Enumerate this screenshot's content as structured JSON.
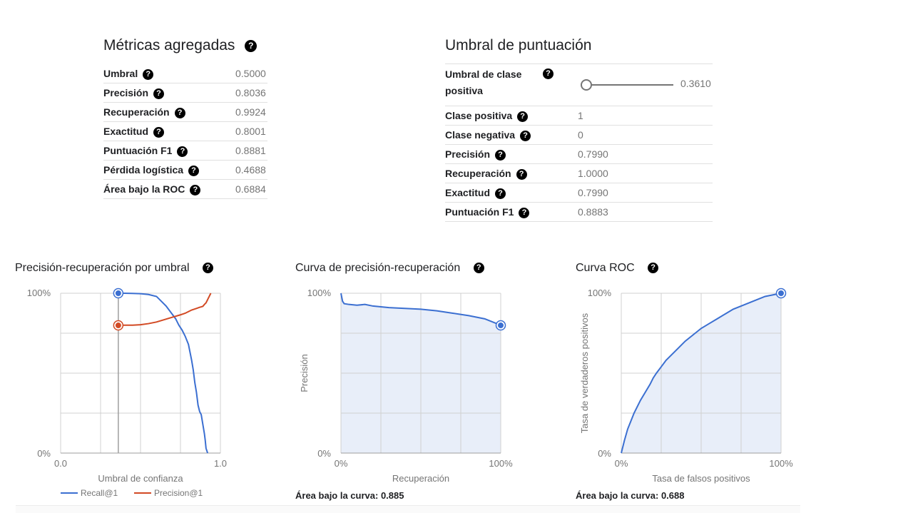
{
  "aggregated": {
    "title": "Métricas agregadas",
    "rows": [
      {
        "label": "Umbral",
        "value": "0.5000"
      },
      {
        "label": "Precisión",
        "value": "0.8036"
      },
      {
        "label": "Recuperación",
        "value": "0.9924"
      },
      {
        "label": "Exactitud",
        "value": "0.8001"
      },
      {
        "label": "Puntuación F1",
        "value": "0.8881"
      },
      {
        "label": "Pérdida logística",
        "value": "0.4688"
      },
      {
        "label": "Área bajo la ROC",
        "value": "0.6884"
      }
    ]
  },
  "threshold": {
    "title": "Umbral de puntuación",
    "slider_label_line1": "Umbral de clase",
    "slider_label_line2": "positiva",
    "slider_value": "0.3610",
    "slider_fraction": 0.0,
    "rows": [
      {
        "label": "Clase positiva",
        "value": "1"
      },
      {
        "label": "Clase negativa",
        "value": "0"
      },
      {
        "label": "Precisión",
        "value": "0.7990"
      },
      {
        "label": "Recuperación",
        "value": "1.0000"
      },
      {
        "label": "Exactitud",
        "value": "0.7990"
      },
      {
        "label": "Puntuación F1",
        "value": "0.8883"
      }
    ]
  },
  "help_glyph": "?",
  "colors": {
    "recall": "#3b6fd1",
    "precision": "#d24a24",
    "fill": "#e8eef9",
    "grid": "#d0d0d0"
  },
  "chart_data": [
    {
      "type": "line",
      "title": "Precisión-recuperación por umbral",
      "xlabel": "Umbral de confianza",
      "ylabel": "",
      "xlim": [
        0,
        1
      ],
      "ylim": [
        0,
        1
      ],
      "x_ticks": [
        "0.0",
        "1.0"
      ],
      "y_ticks": [
        "0%",
        "100%"
      ],
      "legend": "bottom",
      "threshold_marker": 0.361,
      "series": [
        {
          "name": "Recall@1",
          "color": "#3b6fd1",
          "x": [
            0.361,
            0.4,
            0.45,
            0.5,
            0.55,
            0.6,
            0.63,
            0.66,
            0.69,
            0.72,
            0.74,
            0.76,
            0.78,
            0.8,
            0.81,
            0.82,
            0.83,
            0.835,
            0.84,
            0.85,
            0.86,
            0.87,
            0.88,
            0.89,
            0.9,
            0.905,
            0.91,
            0.92
          ],
          "y": [
            1.0,
            1.0,
            0.999,
            0.997,
            0.992,
            0.98,
            0.95,
            0.92,
            0.88,
            0.84,
            0.8,
            0.77,
            0.73,
            0.68,
            0.63,
            0.58,
            0.52,
            0.48,
            0.44,
            0.38,
            0.3,
            0.26,
            0.24,
            0.18,
            0.12,
            0.08,
            0.03,
            0.0
          ]
        },
        {
          "name": "Precision@1",
          "color": "#d24a24",
          "x": [
            0.361,
            0.4,
            0.45,
            0.5,
            0.55,
            0.6,
            0.65,
            0.7,
            0.75,
            0.78,
            0.8,
            0.82,
            0.85,
            0.87,
            0.88,
            0.89,
            0.9,
            0.91,
            0.92,
            0.93,
            0.94
          ],
          "y": [
            0.799,
            0.8,
            0.8,
            0.803,
            0.81,
            0.82,
            0.835,
            0.85,
            0.865,
            0.875,
            0.885,
            0.895,
            0.905,
            0.912,
            0.915,
            0.918,
            0.93,
            0.94,
            0.96,
            0.98,
            1.0
          ]
        }
      ]
    },
    {
      "type": "area",
      "title": "Curva de precisión-recuperación",
      "xlabel": "Recuperación",
      "ylabel": "Precisión",
      "xlim": [
        0,
        1
      ],
      "ylim": [
        0,
        1
      ],
      "x_ticks": [
        "0%",
        "100%"
      ],
      "y_ticks": [
        "0%",
        "100%"
      ],
      "auc_label": "Área bajo la curva: 0.885",
      "marker": [
        1.0,
        0.799
      ],
      "series": [
        {
          "x": [
            0.0,
            0.01,
            0.02,
            0.05,
            0.1,
            0.15,
            0.2,
            0.3,
            0.4,
            0.5,
            0.6,
            0.7,
            0.8,
            0.9,
            0.95,
            1.0
          ],
          "y": [
            1.0,
            0.95,
            0.935,
            0.93,
            0.925,
            0.93,
            0.92,
            0.91,
            0.905,
            0.9,
            0.89,
            0.875,
            0.86,
            0.84,
            0.82,
            0.8
          ]
        }
      ]
    },
    {
      "type": "area",
      "title": "Curva ROC",
      "xlabel": "Tasa de falsos positivos",
      "ylabel": "Tasa de verdaderos positivos",
      "xlim": [
        0,
        1
      ],
      "ylim": [
        0,
        1
      ],
      "x_ticks": [
        "0%",
        "100%"
      ],
      "y_ticks": [
        "0%",
        "100%"
      ],
      "auc_label": "Área bajo la curva: 0.688",
      "marker": [
        1.0,
        1.0
      ],
      "series": [
        {
          "x": [
            0.0,
            0.02,
            0.04,
            0.06,
            0.08,
            0.1,
            0.12,
            0.15,
            0.18,
            0.2,
            0.22,
            0.25,
            0.28,
            0.3,
            0.35,
            0.4,
            0.45,
            0.5,
            0.55,
            0.6,
            0.65,
            0.7,
            0.75,
            0.8,
            0.85,
            0.9,
            0.95,
            1.0
          ],
          "y": [
            0.0,
            0.08,
            0.15,
            0.2,
            0.25,
            0.29,
            0.33,
            0.38,
            0.43,
            0.47,
            0.5,
            0.54,
            0.58,
            0.6,
            0.65,
            0.7,
            0.74,
            0.78,
            0.81,
            0.84,
            0.87,
            0.9,
            0.92,
            0.94,
            0.96,
            0.98,
            0.99,
            1.0
          ]
        }
      ]
    }
  ]
}
